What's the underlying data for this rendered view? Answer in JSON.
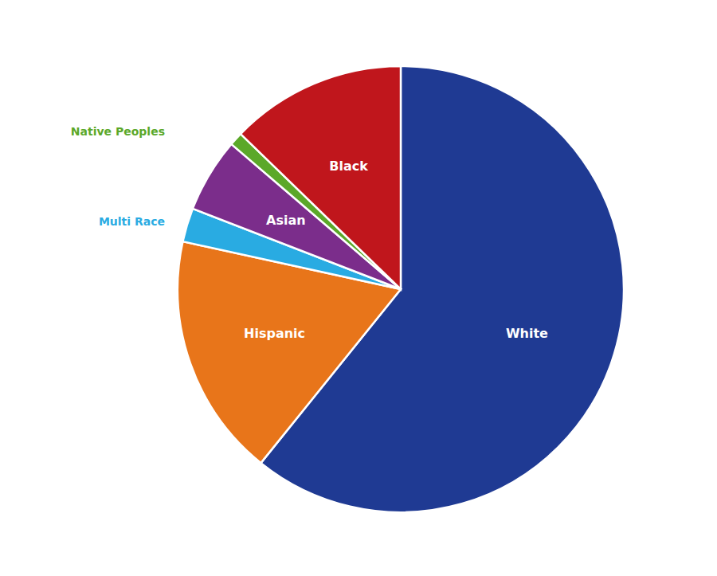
{
  "chart_data": {
    "type": "pie",
    "categories": [
      "White",
      "Hispanic",
      "Multi Race",
      "Asian",
      "Native Peoples",
      "Black"
    ],
    "values": [
      62.0,
      18.0,
      2.5,
      5.5,
      1.0,
      13.0
    ],
    "colors": [
      "#1F3A93",
      "#E8751A",
      "#29ABE2",
      "#7B2D8B",
      "#5BA829",
      "#C0161C"
    ]
  }
}
